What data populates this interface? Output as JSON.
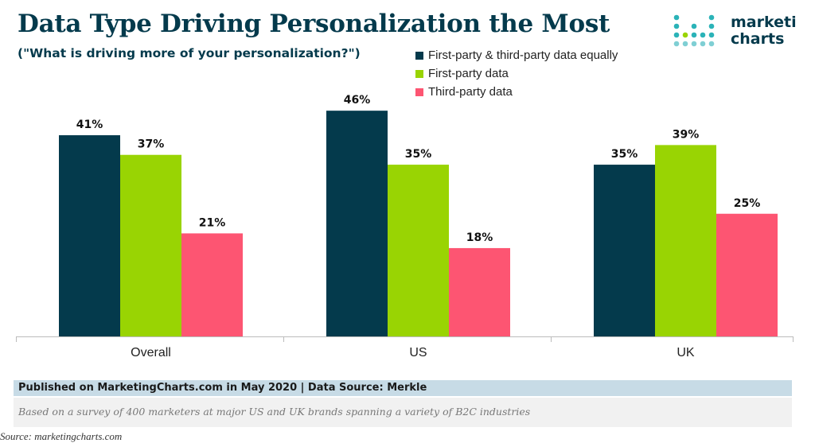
{
  "header": {
    "title": "Data Type Driving Personalization the Most",
    "subtitle": "(\"What is driving more of your personalization?\")"
  },
  "logo": {
    "line1": "marketi",
    "line2": "charts"
  },
  "colors": {
    "title": "#043a4c",
    "series1": "#043a4c",
    "series2": "#99d403",
    "series3": "#fd5572",
    "axis": "#bbbbbb"
  },
  "chart_data": {
    "type": "bar",
    "title": "Data Type Driving Personalization the Most",
    "subtitle": "(\"What is driving more of your personalization?\")",
    "categories": [
      "Overall",
      "US",
      "UK"
    ],
    "series": [
      {
        "name": "First-party & third-party data equally",
        "values": [
          41,
          46,
          35
        ],
        "labels": [
          "41%",
          "46%",
          "35%"
        ],
        "color": "#043a4c"
      },
      {
        "name": "First-party data",
        "values": [
          37,
          35,
          39
        ],
        "labels": [
          "37%",
          "35%",
          "39%"
        ],
        "color": "#99d403"
      },
      {
        "name": "Third-party data",
        "values": [
          21,
          18,
          25
        ],
        "labels": [
          "21%",
          "18%",
          "25%"
        ],
        "color": "#fd5572"
      }
    ],
    "ylim": [
      0,
      50
    ],
    "xlabel": "",
    "ylabel": "",
    "grid": false,
    "legend_position": "top-right"
  },
  "footer": {
    "source": "Published on MarketingCharts.com in May 2020 | Data Source: Merkle",
    "note": "Based on a survey of 400 marketers at major US and UK brands spanning a variety of B2C industries"
  },
  "crop_text": "Source: marketingcharts.com"
}
